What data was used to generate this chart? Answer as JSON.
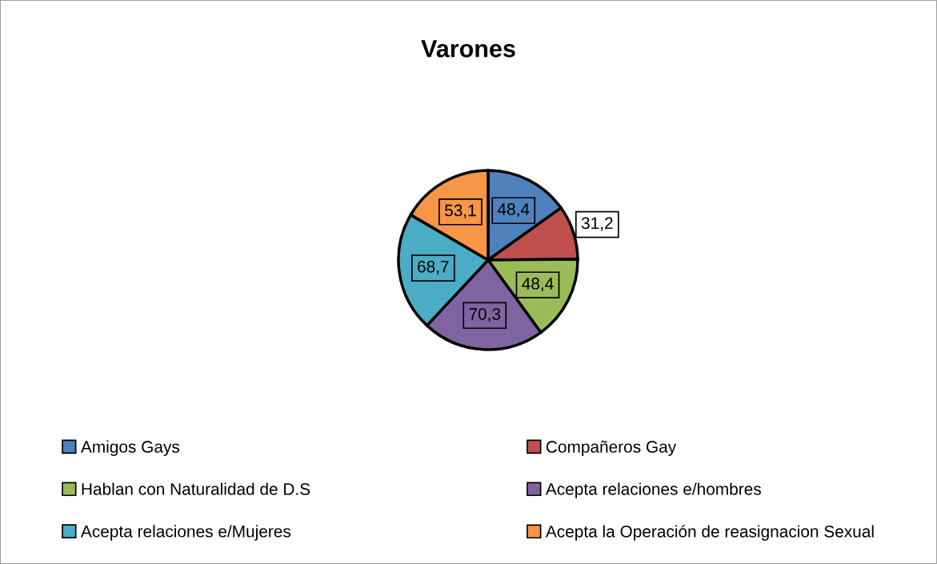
{
  "chart_data": {
    "type": "pie",
    "title": "Varones",
    "categories": [
      "Amigos Gays",
      "Compañeros Gay",
      "Hablan con Naturalidad de D.S",
      "Acepta relaciones e/hombres",
      "Acepta relaciones e/Mujeres",
      "Acepta la Operación de reasignacion Sexual"
    ],
    "values": [
      48.4,
      31.2,
      48.4,
      70.3,
      68.7,
      53.1
    ],
    "colors": [
      "#4f81bd",
      "#c0504d",
      "#9bbb59",
      "#8064a2",
      "#4bacc6",
      "#f79646"
    ],
    "value_labels": [
      "48,4",
      "31,2",
      "48,4",
      "70,3",
      "68,7",
      "53,1"
    ],
    "legend": "bottom"
  }
}
